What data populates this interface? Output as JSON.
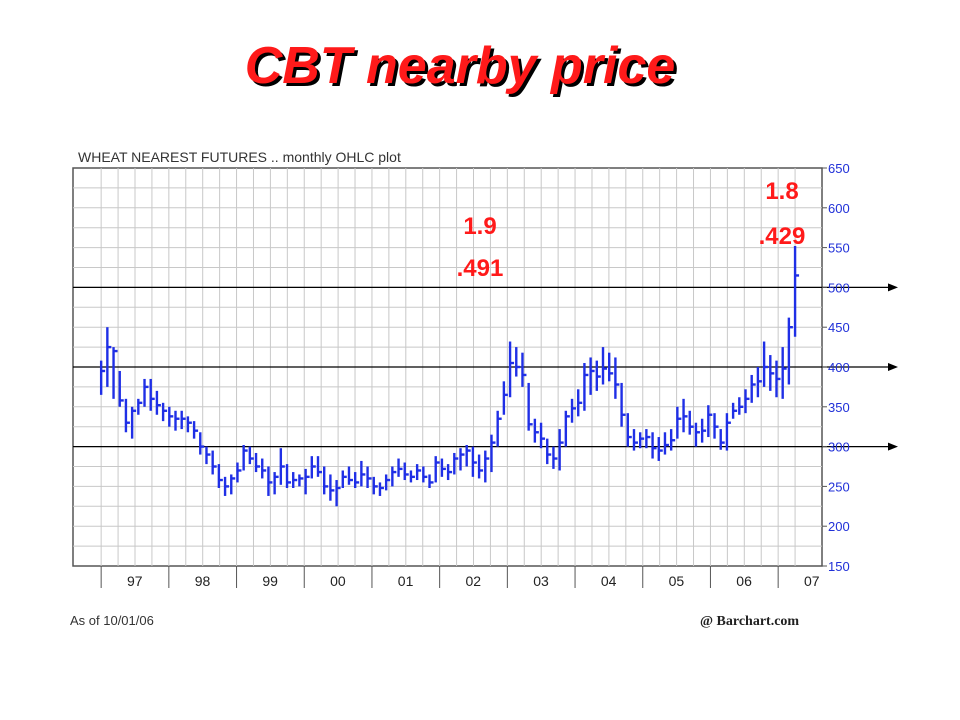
{
  "slide": {
    "title": "CBT nearby price"
  },
  "annotations": [
    {
      "line1": "1.9",
      "line2": ".491",
      "year": 2002.25
    },
    {
      "line1": "1.8",
      "line2": ".429",
      "year": 2006.6
    }
  ],
  "chart_data": {
    "type": "ohlc",
    "title": "WHEAT NEAREST FUTURES .. monthly OHLC plot",
    "as_of": "As of 10/01/06",
    "source": "@ Barchart.com",
    "ylim": [
      150,
      650
    ],
    "yticks": [
      150,
      200,
      250,
      300,
      350,
      400,
      450,
      500,
      550,
      600,
      650
    ],
    "xlim": [
      1996.4,
      2006.95
    ],
    "xtick_labels": [
      "97",
      "98",
      "99",
      "00",
      "01",
      "02",
      "03",
      "04",
      "05",
      "06",
      "07"
    ],
    "xtick_years": [
      1997,
      1998,
      1999,
      2000,
      2001,
      2002,
      2003,
      2004,
      2005,
      2006,
      2007
    ],
    "reference_lines": [
      300,
      400,
      500
    ],
    "grid": true,
    "bars": [
      [
        1996.5,
        408,
        365,
        395
      ],
      [
        1996.6,
        450,
        375,
        425
      ],
      [
        1996.7,
        425,
        360,
        420
      ],
      [
        1996.8,
        395,
        350,
        358
      ],
      [
        1996.9,
        360,
        318,
        330
      ],
      [
        1997.0,
        350,
        310,
        345
      ],
      [
        1997.1,
        360,
        340,
        355
      ],
      [
        1997.2,
        385,
        350,
        375
      ],
      [
        1997.3,
        385,
        345,
        360
      ],
      [
        1997.4,
        370,
        340,
        352
      ],
      [
        1997.5,
        355,
        332,
        345
      ],
      [
        1997.6,
        350,
        325,
        338
      ],
      [
        1997.7,
        345,
        320,
        335
      ],
      [
        1997.8,
        345,
        322,
        335
      ],
      [
        1997.9,
        338,
        318,
        330
      ],
      [
        1998.0,
        332,
        310,
        320
      ],
      [
        1998.1,
        318,
        290,
        300
      ],
      [
        1998.2,
        300,
        278,
        290
      ],
      [
        1998.3,
        295,
        265,
        275
      ],
      [
        1998.4,
        278,
        248,
        258
      ],
      [
        1998.5,
        262,
        238,
        250
      ],
      [
        1998.6,
        265,
        240,
        260
      ],
      [
        1998.7,
        280,
        255,
        270
      ],
      [
        1998.8,
        302,
        270,
        295
      ],
      [
        1998.9,
        300,
        278,
        285
      ],
      [
        1999.0,
        292,
        268,
        275
      ],
      [
        1999.1,
        285,
        260,
        270
      ],
      [
        1999.2,
        275,
        238,
        255
      ],
      [
        1999.3,
        268,
        240,
        262
      ],
      [
        1999.4,
        298,
        252,
        275
      ],
      [
        1999.5,
        278,
        248,
        255
      ],
      [
        1999.6,
        268,
        248,
        258
      ],
      [
        1999.7,
        265,
        250,
        260
      ],
      [
        1999.8,
        272,
        240,
        262
      ],
      [
        1999.9,
        288,
        260,
        275
      ],
      [
        2000.0,
        288,
        262,
        268
      ],
      [
        2000.1,
        275,
        240,
        250
      ],
      [
        2000.2,
        265,
        232,
        245
      ],
      [
        2000.3,
        258,
        225,
        248
      ],
      [
        2000.4,
        270,
        248,
        262
      ],
      [
        2000.5,
        275,
        252,
        258
      ],
      [
        2000.6,
        268,
        248,
        255
      ],
      [
        2000.7,
        282,
        250,
        265
      ],
      [
        2000.8,
        275,
        248,
        260
      ],
      [
        2000.9,
        262,
        240,
        250
      ],
      [
        2001.0,
        255,
        238,
        248
      ],
      [
        2001.1,
        265,
        245,
        258
      ],
      [
        2001.2,
        275,
        250,
        268
      ],
      [
        2001.3,
        285,
        262,
        272
      ],
      [
        2001.4,
        280,
        258,
        265
      ],
      [
        2001.5,
        270,
        255,
        262
      ],
      [
        2001.6,
        278,
        258,
        270
      ],
      [
        2001.7,
        275,
        255,
        262
      ],
      [
        2001.8,
        265,
        248,
        255
      ],
      [
        2001.9,
        288,
        255,
        280
      ],
      [
        2002.0,
        285,
        262,
        272
      ],
      [
        2002.1,
        278,
        258,
        268
      ],
      [
        2002.2,
        292,
        265,
        285
      ],
      [
        2002.3,
        298,
        270,
        290
      ],
      [
        2002.4,
        302,
        275,
        295
      ],
      [
        2002.5,
        300,
        262,
        280
      ],
      [
        2002.6,
        290,
        260,
        270
      ],
      [
        2002.7,
        295,
        255,
        285
      ],
      [
        2002.8,
        315,
        268,
        305
      ],
      [
        2002.9,
        345,
        300,
        335
      ],
      [
        2003.0,
        382,
        340,
        365
      ],
      [
        2003.1,
        432,
        362,
        405
      ],
      [
        2003.2,
        425,
        388,
        400
      ],
      [
        2003.3,
        418,
        375,
        390
      ],
      [
        2003.4,
        380,
        320,
        328
      ],
      [
        2003.5,
        335,
        305,
        318
      ],
      [
        2003.6,
        330,
        298,
        310
      ],
      [
        2003.7,
        310,
        278,
        290
      ],
      [
        2003.8,
        300,
        272,
        285
      ],
      [
        2003.9,
        322,
        270,
        305
      ],
      [
        2004.0,
        345,
        300,
        338
      ],
      [
        2004.1,
        360,
        330,
        348
      ],
      [
        2004.2,
        372,
        338,
        355
      ],
      [
        2004.3,
        405,
        345,
        390
      ],
      [
        2004.4,
        412,
        365,
        395
      ],
      [
        2004.5,
        408,
        370,
        388
      ],
      [
        2004.6,
        425,
        378,
        398
      ],
      [
        2004.7,
        418,
        382,
        392
      ],
      [
        2004.8,
        412,
        360,
        378
      ],
      [
        2004.9,
        380,
        325,
        340
      ],
      [
        2005.0,
        342,
        300,
        312
      ],
      [
        2005.1,
        322,
        295,
        305
      ],
      [
        2005.2,
        318,
        298,
        310
      ],
      [
        2005.3,
        322,
        298,
        312
      ],
      [
        2005.4,
        318,
        285,
        298
      ],
      [
        2005.5,
        312,
        282,
        295
      ],
      [
        2005.6,
        318,
        290,
        302
      ],
      [
        2005.7,
        322,
        295,
        308
      ],
      [
        2005.8,
        350,
        310,
        335
      ],
      [
        2005.9,
        360,
        318,
        338
      ],
      [
        2006.0,
        345,
        315,
        325
      ],
      [
        2006.1,
        330,
        300,
        318
      ],
      [
        2006.2,
        335,
        305,
        320
      ],
      [
        2006.3,
        352,
        312,
        340
      ],
      [
        2006.4,
        342,
        310,
        325
      ],
      [
        2006.5,
        322,
        296,
        305
      ],
      [
        2006.6,
        342,
        295,
        330
      ],
      [
        2006.7,
        355,
        335,
        345
      ],
      [
        2006.8,
        362,
        340,
        350
      ],
      [
        2006.9,
        372,
        342,
        360
      ],
      [
        2007.0,
        390,
        355,
        378
      ],
      [
        2007.1,
        400,
        362,
        382
      ],
      [
        2007.2,
        432,
        375,
        400
      ],
      [
        2007.3,
        415,
        370,
        392
      ],
      [
        2007.4,
        408,
        362,
        385
      ],
      [
        2007.5,
        425,
        360,
        398
      ],
      [
        2007.6,
        462,
        378,
        450
      ],
      [
        2007.7,
        552,
        438,
        515
      ]
    ]
  }
}
